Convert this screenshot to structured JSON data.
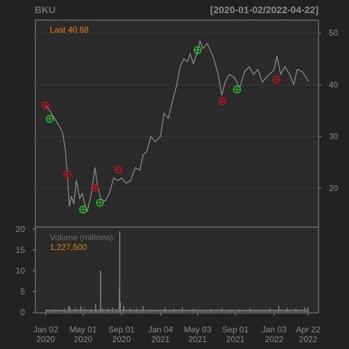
{
  "chart_data": {
    "type": "line",
    "symbol": "BKU",
    "date_range_label": "[2020-01-02/2022-04-22]",
    "last_label": "Last 40.68",
    "volume_label": "Volume (millions):",
    "volume_value_label": "1,227,500",
    "price_axis": {
      "ylim": [
        12.5,
        52.5
      ],
      "ticks": [
        20,
        30,
        40,
        50
      ],
      "tick_labels": [
        "20",
        "30",
        "40",
        "50"
      ],
      "grid": true
    },
    "volume_axis": {
      "ylim": [
        0,
        20
      ],
      "ticks": [
        0,
        5,
        10,
        15,
        20
      ],
      "tick_labels": [
        "0",
        "5",
        "10",
        "15",
        "20"
      ]
    },
    "x_ticks": [
      {
        "date": "2020-01-02",
        "line1": "Jan 02",
        "line2": "2020"
      },
      {
        "date": "2020-05-01",
        "line1": "May 01",
        "line2": "2020"
      },
      {
        "date": "2020-09-01",
        "line1": "Sep 01",
        "line2": "2020"
      },
      {
        "date": "2021-01-04",
        "line1": "Jan 04",
        "line2": "2021"
      },
      {
        "date": "2021-05-03",
        "line1": "May 03",
        "line2": "2021"
      },
      {
        "date": "2021-09-01",
        "line1": "Sep 01",
        "line2": "2021"
      },
      {
        "date": "2022-01-03",
        "line1": "Jan 03",
        "line2": "2022"
      },
      {
        "date": "2022-04-22",
        "line1": "Apr 22",
        "line2": "2022"
      }
    ],
    "price_series": {
      "name": "BKU",
      "points": [
        [
          "2020-01-02",
          36.0
        ],
        [
          "2020-01-15",
          35.0
        ],
        [
          "2020-01-30",
          33.5
        ],
        [
          "2020-02-14",
          32.0
        ],
        [
          "2020-02-24",
          31.0
        ],
        [
          "2020-03-05",
          27.5
        ],
        [
          "2020-03-12",
          22.0
        ],
        [
          "2020-03-18",
          16.5
        ],
        [
          "2020-03-24",
          18.5
        ],
        [
          "2020-04-01",
          17.0
        ],
        [
          "2020-04-09",
          21.5
        ],
        [
          "2020-04-20",
          18.0
        ],
        [
          "2020-04-28",
          19.0
        ],
        [
          "2020-05-08",
          16.5
        ],
        [
          "2020-05-14",
          15.5
        ],
        [
          "2020-05-26",
          18.5
        ],
        [
          "2020-06-08",
          24.0
        ],
        [
          "2020-06-15",
          21.0
        ],
        [
          "2020-06-26",
          18.0
        ],
        [
          "2020-07-10",
          17.5
        ],
        [
          "2020-07-24",
          19.0
        ],
        [
          "2020-08-07",
          22.0
        ],
        [
          "2020-08-21",
          21.5
        ],
        [
          "2020-09-01",
          22.0
        ],
        [
          "2020-09-15",
          21.0
        ],
        [
          "2020-09-30",
          21.5
        ],
        [
          "2020-10-15",
          24.0
        ],
        [
          "2020-10-30",
          23.5
        ],
        [
          "2020-11-09",
          26.5
        ],
        [
          "2020-11-20",
          27.0
        ],
        [
          "2020-12-04",
          30.0
        ],
        [
          "2020-12-18",
          29.0
        ],
        [
          "2021-01-04",
          30.0
        ],
        [
          "2021-01-15",
          34.5
        ],
        [
          "2021-01-29",
          33.5
        ],
        [
          "2021-02-12",
          37.0
        ],
        [
          "2021-02-25",
          40.0
        ],
        [
          "2021-03-08",
          43.5
        ],
        [
          "2021-03-19",
          45.0
        ],
        [
          "2021-03-31",
          44.5
        ],
        [
          "2021-04-09",
          46.0
        ],
        [
          "2021-04-19",
          44.0
        ],
        [
          "2021-05-03",
          46.5
        ],
        [
          "2021-05-10",
          48.5
        ],
        [
          "2021-05-20",
          47.0
        ],
        [
          "2021-06-02",
          48.0
        ],
        [
          "2021-06-14",
          46.5
        ],
        [
          "2021-06-24",
          45.0
        ],
        [
          "2021-07-08",
          42.0
        ],
        [
          "2021-07-19",
          38.0
        ],
        [
          "2021-07-30",
          40.5
        ],
        [
          "2021-08-12",
          42.0
        ],
        [
          "2021-08-26",
          41.5
        ],
        [
          "2021-09-01",
          41.0
        ],
        [
          "2021-09-15",
          39.5
        ],
        [
          "2021-09-30",
          42.5
        ],
        [
          "2021-10-15",
          43.5
        ],
        [
          "2021-10-29",
          42.0
        ],
        [
          "2021-11-12",
          43.0
        ],
        [
          "2021-11-26",
          40.5
        ],
        [
          "2021-12-10",
          41.5
        ],
        [
          "2021-12-27",
          42.5
        ],
        [
          "2022-01-03",
          43.0
        ],
        [
          "2022-01-12",
          45.5
        ],
        [
          "2022-01-24",
          42.0
        ],
        [
          "2022-02-07",
          43.5
        ],
        [
          "2022-02-22",
          42.0
        ],
        [
          "2022-03-07",
          40.0
        ],
        [
          "2022-03-18",
          43.0
        ],
        [
          "2022-04-04",
          42.5
        ],
        [
          "2022-04-14",
          41.5
        ],
        [
          "2022-04-22",
          40.68
        ]
      ]
    },
    "volume_series": {
      "name": "Volume",
      "points": [
        [
          "2020-01-02",
          0.5
        ],
        [
          "2020-02-03",
          0.6
        ],
        [
          "2020-03-02",
          0.9
        ],
        [
          "2020-03-16",
          1.6
        ],
        [
          "2020-03-20",
          1.2
        ],
        [
          "2020-04-06",
          1.0
        ],
        [
          "2020-04-24",
          1.4
        ],
        [
          "2020-05-05",
          0.9
        ],
        [
          "2020-05-25",
          0.8
        ],
        [
          "2020-06-10",
          2.0
        ],
        [
          "2020-06-26",
          10.0
        ],
        [
          "2020-07-01",
          1.0
        ],
        [
          "2020-07-20",
          0.9
        ],
        [
          "2020-08-03",
          1.1
        ],
        [
          "2020-08-17",
          0.8
        ],
        [
          "2020-08-25",
          6.0
        ],
        [
          "2020-08-26",
          19.5
        ],
        [
          "2020-08-28",
          2.5
        ],
        [
          "2020-09-08",
          1.6
        ],
        [
          "2020-09-28",
          1.0
        ],
        [
          "2020-10-19",
          0.9
        ],
        [
          "2020-11-09",
          1.5
        ],
        [
          "2020-12-07",
          0.8
        ],
        [
          "2021-01-19",
          1.1
        ],
        [
          "2021-02-16",
          0.9
        ],
        [
          "2021-03-15",
          1.2
        ],
        [
          "2021-04-19",
          0.9
        ],
        [
          "2021-05-17",
          0.7
        ],
        [
          "2021-06-14",
          0.8
        ],
        [
          "2021-07-19",
          1.0
        ],
        [
          "2021-08-16",
          0.7
        ],
        [
          "2021-09-13",
          0.8
        ],
        [
          "2021-10-18",
          1.0
        ],
        [
          "2021-11-15",
          0.7
        ],
        [
          "2021-12-20",
          1.0
        ],
        [
          "2022-01-18",
          1.6
        ],
        [
          "2022-02-14",
          1.1
        ],
        [
          "2022-03-14",
          1.0
        ],
        [
          "2022-04-11",
          1.2
        ],
        [
          "2022-04-22",
          1.23
        ]
      ]
    },
    "markers": [
      {
        "date": "2020-01-02",
        "price": 36.0,
        "kind": "sell",
        "color": "#cc1111"
      },
      {
        "date": "2020-01-15",
        "price": 33.4,
        "kind": "buy",
        "color": "#22cc22"
      },
      {
        "date": "2020-03-11",
        "price": 22.7,
        "kind": "sell",
        "color": "#cc1111"
      },
      {
        "date": "2020-05-01",
        "price": 15.9,
        "kind": "buy",
        "color": "#22cc22"
      },
      {
        "date": "2020-06-08",
        "price": 20.1,
        "kind": "sell",
        "color": "#cc1111"
      },
      {
        "date": "2020-06-24",
        "price": 17.2,
        "kind": "buy",
        "color": "#22cc22"
      },
      {
        "date": "2020-08-21",
        "price": 23.6,
        "kind": "sell",
        "color": "#cc1111"
      },
      {
        "date": "2021-05-03",
        "price": 46.7,
        "kind": "buy",
        "color": "#22cc22"
      },
      {
        "date": "2021-07-21",
        "price": 36.8,
        "kind": "sell",
        "color": "#cc1111"
      },
      {
        "date": "2021-09-06",
        "price": 39.1,
        "kind": "buy",
        "color": "#22cc22"
      },
      {
        "date": "2022-01-10",
        "price": 41.0,
        "kind": "sell",
        "color": "#cc1111"
      }
    ],
    "colors": {
      "background": "#222222",
      "panel": "#2a2a2a",
      "line": "#8c8c8c",
      "text": "#8c8c8c",
      "accent": "#e6820e",
      "border": "#8c8c8c"
    }
  }
}
